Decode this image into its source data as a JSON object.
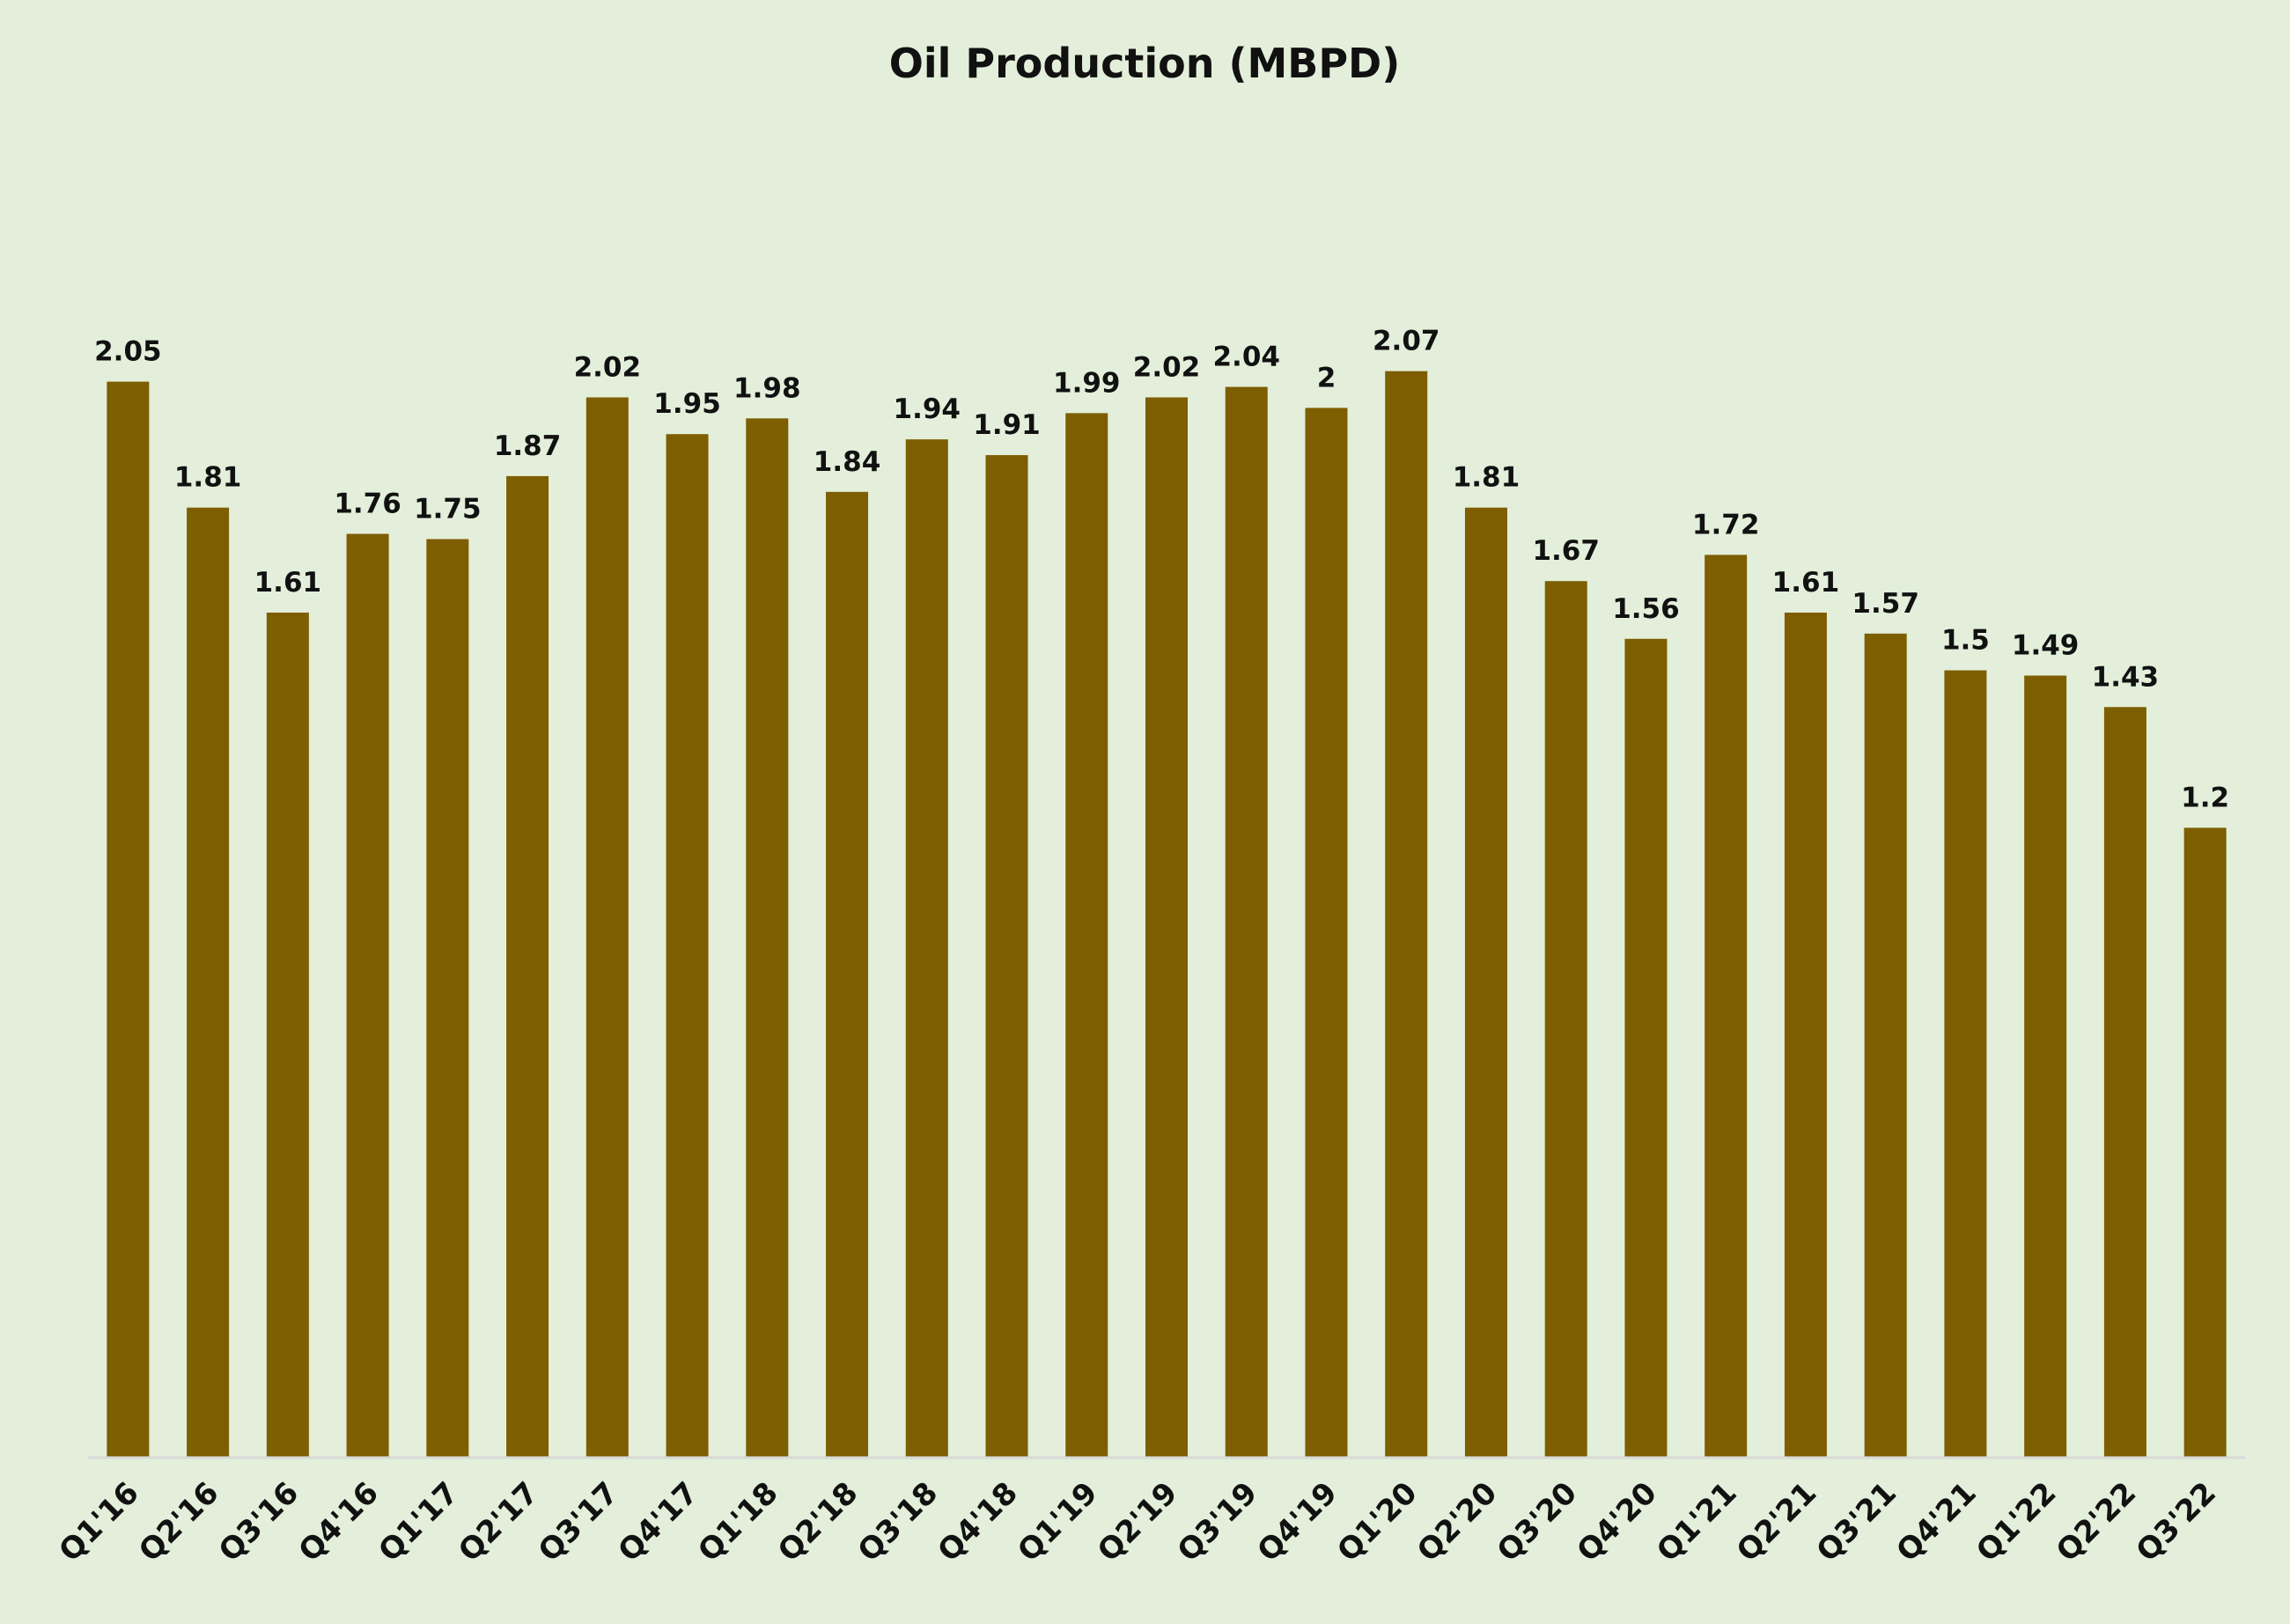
{
  "chart_data": {
    "type": "bar",
    "title": "Oil Production (MBPD)",
    "xlabel": "",
    "ylabel": "",
    "categories": [
      "Q1'16",
      "Q2'16",
      "Q3'16",
      "Q4'16",
      "Q1'17",
      "Q2'17",
      "Q3'17",
      "Q4'17",
      "Q1'18",
      "Q2'18",
      "Q3'18",
      "Q4'18",
      "Q1'19",
      "Q2'19",
      "Q3'19",
      "Q4'19",
      "Q1'20",
      "Q2'20",
      "Q3'20",
      "Q4'20",
      "Q1'21",
      "Q2'21",
      "Q3'21",
      "Q4'21",
      "Q1'22",
      "Q2'22",
      "Q3'22"
    ],
    "values": [
      2.05,
      1.81,
      1.61,
      1.76,
      1.75,
      1.87,
      2.02,
      1.95,
      1.98,
      1.84,
      1.94,
      1.91,
      1.99,
      2.02,
      2.04,
      2,
      2.07,
      1.81,
      1.67,
      1.56,
      1.72,
      1.61,
      1.57,
      1.5,
      1.49,
      1.43,
      1.2
    ],
    "data_labels": [
      "2.05",
      "1.81",
      "1.61",
      "1.76",
      "1.75",
      "1.87",
      "2.02",
      "1.95",
      "1.98",
      "1.84",
      "1.94",
      "1.91",
      "1.99",
      "2.02",
      "2.04",
      "2",
      "2.07",
      "1.81",
      "1.67",
      "1.56",
      "1.72",
      "1.61",
      "1.57",
      "1.5",
      "1.49",
      "1.43",
      "1.2"
    ],
    "ylim": [
      0,
      2.3
    ],
    "grid": false,
    "legend": "none",
    "colors": {
      "bar": "#7d5e00",
      "background": "#e3efda",
      "axis": "#d9d9d9",
      "text": "#111111"
    }
  }
}
